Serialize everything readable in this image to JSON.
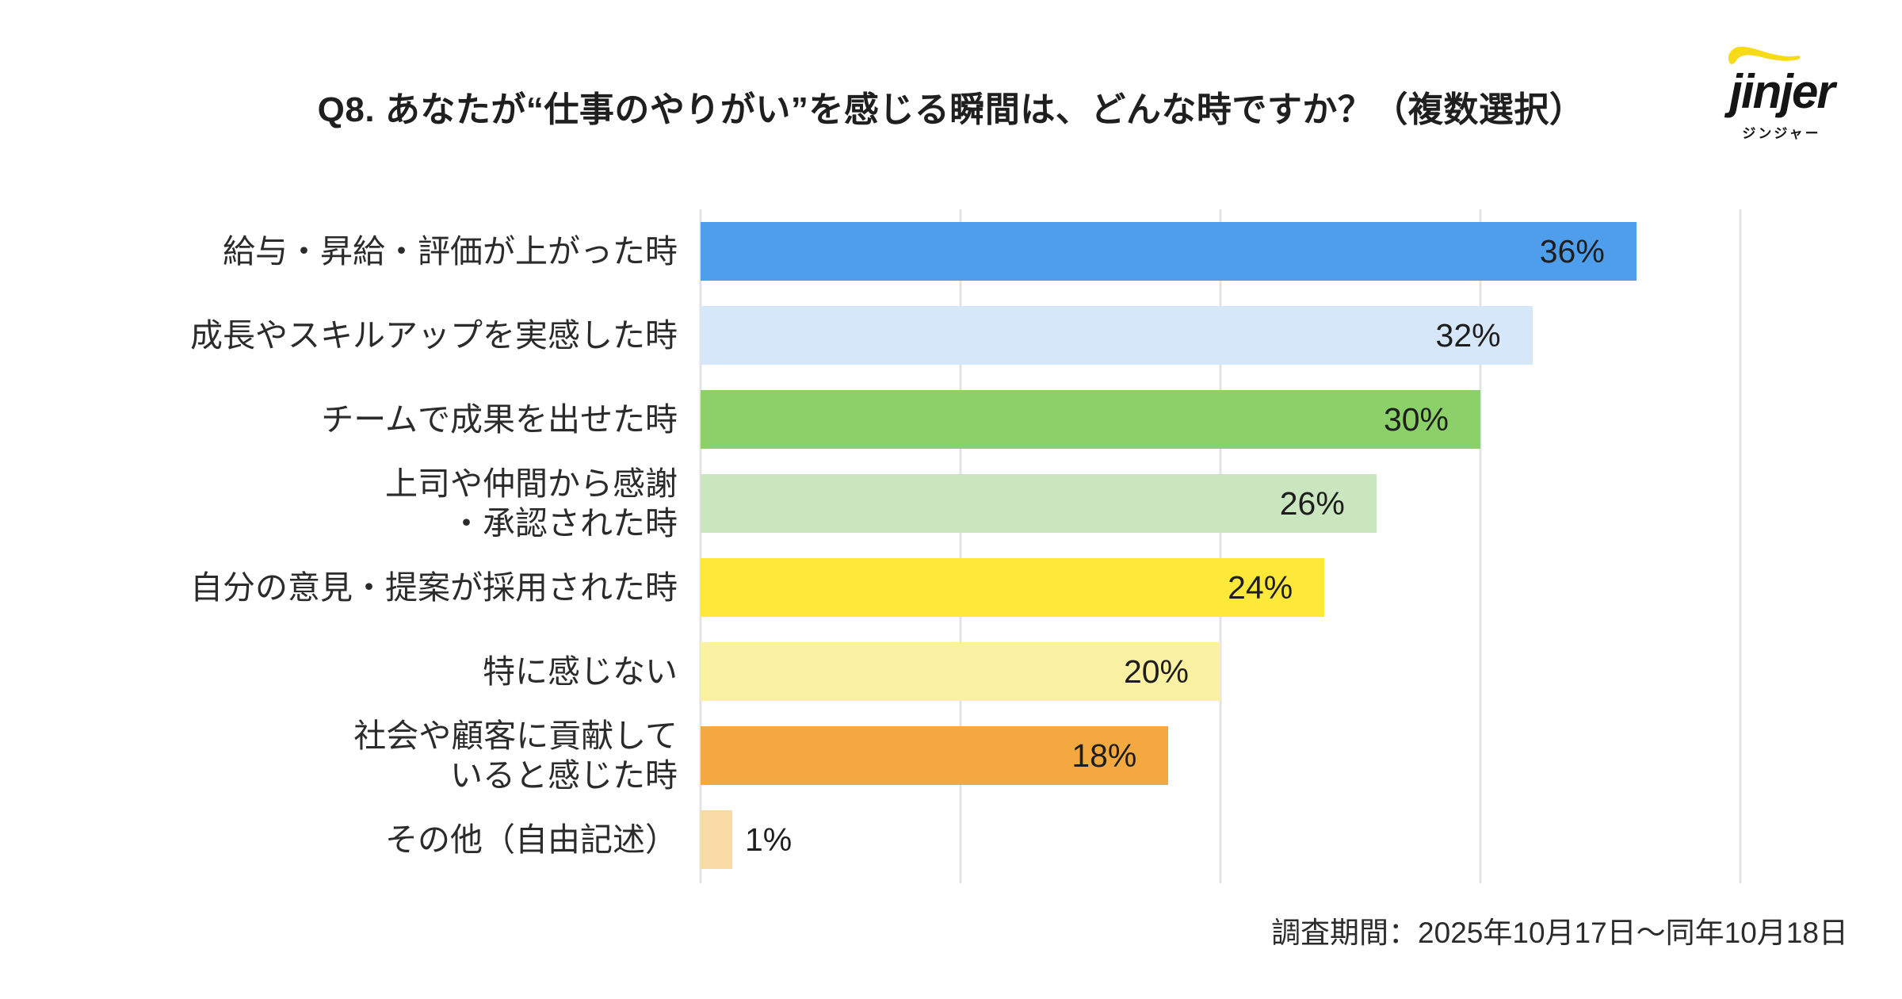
{
  "page": {
    "title": "Q8. あなたが“仕事のやりがい”を感じる瞬間は、どんな時ですか？（複数選択）",
    "footer_note": "調査期間：2025年10月17日～同年10月18日"
  },
  "logo": {
    "brand": "jinjer",
    "katakana": "ジンジャー",
    "swoosh_color": "#F8DB18",
    "text_color": "#151515"
  },
  "chart_data": {
    "type": "bar",
    "orientation": "horizontal",
    "title": "Q8. あなたが“仕事のやりがい”を感じる瞬間は、どんな時ですか？（複数選択）",
    "xlabel": "",
    "ylabel": "",
    "xlim": [
      0,
      40
    ],
    "grid": true,
    "gridline_step_pct": 10,
    "gridline_color": "#E3E3E3",
    "value_suffix": "%",
    "categories": [
      "給与・昇給・評価が上がった時",
      "成長やスキルアップを実感した時",
      "チームで成果を出せた時",
      "上司や仲間から感謝・承認された時",
      "自分の意見・提案が採用された時",
      "特に感じない",
      "社会や顧客に貢献していると感じた時",
      "その他（自由記述）"
    ],
    "values": [
      36,
      32,
      30,
      26,
      24,
      20,
      18,
      1
    ],
    "rows": [
      {
        "label": "給与・昇給・評価が上がった時",
        "display_label": "給与・昇給・評価が上がった時",
        "value": 36,
        "value_label": "36%",
        "color": "#4F9EEC",
        "value_label_outside": false
      },
      {
        "label": "成長やスキルアップを実感した時",
        "display_label": "成長やスキルアップを実感した時",
        "value": 32,
        "value_label": "32%",
        "color": "#D6E7F9",
        "value_label_outside": false
      },
      {
        "label": "チームで成果を出せた時",
        "display_label": "チームで成果を出せた時",
        "value": 30,
        "value_label": "30%",
        "color": "#8CD06A",
        "value_label_outside": false
      },
      {
        "label": "上司や仲間から感謝・承認された時",
        "display_label": "上司や仲間から感謝\n・承認された時",
        "value": 26,
        "value_label": "26%",
        "color": "#C9E6BE",
        "value_label_outside": false
      },
      {
        "label": "自分の意見・提案が採用された時",
        "display_label": "自分の意見・提案が採用された時",
        "value": 24,
        "value_label": "24%",
        "color": "#FEE93B",
        "value_label_outside": false
      },
      {
        "label": "特に感じない",
        "display_label": "特に感じない",
        "value": 20,
        "value_label": "20%",
        "color": "#FBF1A3",
        "value_label_outside": false
      },
      {
        "label": "社会や顧客に貢献していると感じた時",
        "display_label": "社会や顧客に貢献して\nいると感じた時",
        "value": 18,
        "value_label": "18%",
        "color": "#F3A93F",
        "value_label_outside": false
      },
      {
        "label": "その他（自由記述）",
        "display_label": "その他（自由記述）",
        "value": 1,
        "value_label": "1%",
        "color": "#F8DBA4",
        "value_label_outside": true
      }
    ]
  }
}
